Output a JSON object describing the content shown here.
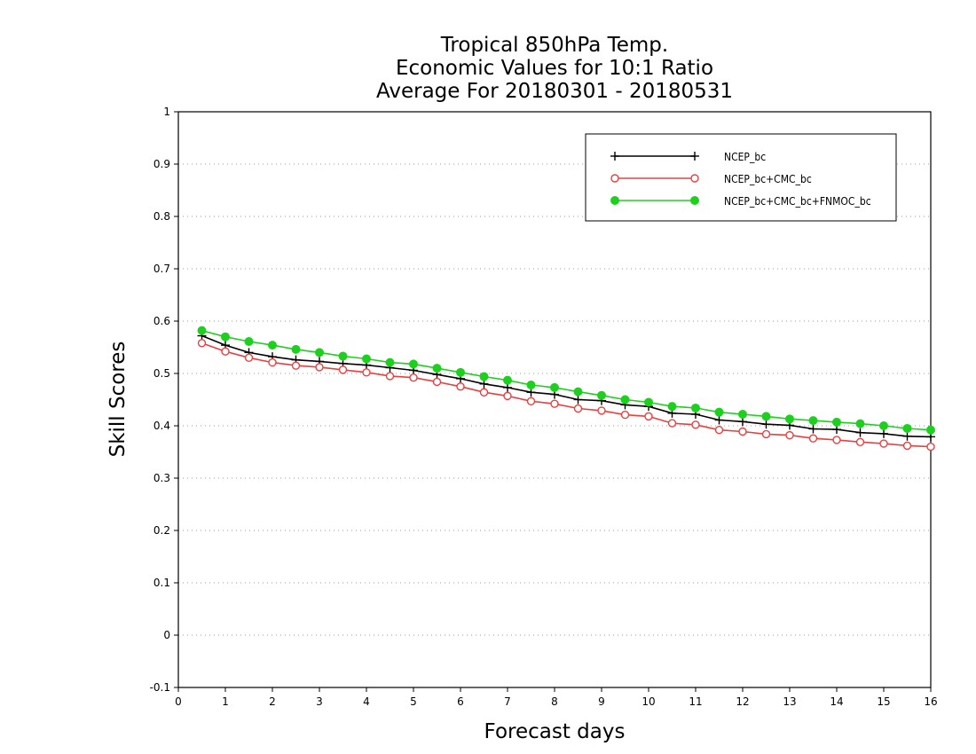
{
  "chart_data": {
    "type": "line",
    "title": [
      "Tropical 850hPa Temp.",
      "Economic Values for 10:1 Ratio",
      "Average For 20180301 - 20180531"
    ],
    "xlabel": "Forecast days",
    "ylabel": "Skill Scores",
    "xlim": [
      0,
      16
    ],
    "ylim": [
      -0.1,
      1
    ],
    "xticks": [
      "0",
      "1",
      "2",
      "3",
      "4",
      "5",
      "6",
      "7",
      "8",
      "9",
      "10",
      "11",
      "12",
      "13",
      "14",
      "15",
      "16"
    ],
    "yticks": [
      "-0.1",
      "0",
      "0.1",
      "0.2",
      "0.3",
      "0.4",
      "0.5",
      "0.6",
      "0.7",
      "0.8",
      "0.9",
      "1"
    ],
    "grid": "horizontal-dotted",
    "legend_position": "top-right",
    "x": [
      0.5,
      1,
      1.5,
      2,
      2.5,
      3,
      3.5,
      4,
      4.5,
      5,
      5.5,
      6,
      6.5,
      7,
      7.5,
      8,
      8.5,
      9,
      9.5,
      10,
      10.5,
      11,
      11.5,
      12,
      12.5,
      13,
      13.5,
      14,
      14.5,
      15,
      15.5,
      16
    ],
    "series": [
      {
        "name": "NCEP_bc",
        "color": "#000000",
        "marker": "plus",
        "values": [
          0.572,
          0.554,
          0.54,
          0.532,
          0.526,
          0.523,
          0.519,
          0.516,
          0.511,
          0.506,
          0.498,
          0.49,
          0.48,
          0.473,
          0.464,
          0.46,
          0.45,
          0.448,
          0.44,
          0.437,
          0.424,
          0.422,
          0.411,
          0.408,
          0.403,
          0.401,
          0.394,
          0.393,
          0.387,
          0.385,
          0.38,
          0.379
        ]
      },
      {
        "name": "NCEP_bc+CMC_bc",
        "color": "#e84040",
        "marker": "open-circle",
        "values": [
          0.558,
          0.542,
          0.53,
          0.521,
          0.515,
          0.512,
          0.507,
          0.502,
          0.495,
          0.492,
          0.484,
          0.475,
          0.464,
          0.457,
          0.447,
          0.442,
          0.433,
          0.429,
          0.421,
          0.418,
          0.405,
          0.402,
          0.392,
          0.389,
          0.384,
          0.382,
          0.376,
          0.373,
          0.369,
          0.366,
          0.362,
          0.36
        ]
      },
      {
        "name": "NCEP_bc+CMC_bc+FNMOC_bc",
        "color": "#1ed01e",
        "marker": "filled-circle",
        "values": [
          0.582,
          0.57,
          0.561,
          0.554,
          0.546,
          0.54,
          0.533,
          0.528,
          0.521,
          0.518,
          0.51,
          0.502,
          0.494,
          0.487,
          0.478,
          0.473,
          0.465,
          0.458,
          0.45,
          0.445,
          0.437,
          0.434,
          0.426,
          0.422,
          0.418,
          0.413,
          0.41,
          0.407,
          0.404,
          0.4,
          0.395,
          0.392
        ]
      }
    ]
  }
}
